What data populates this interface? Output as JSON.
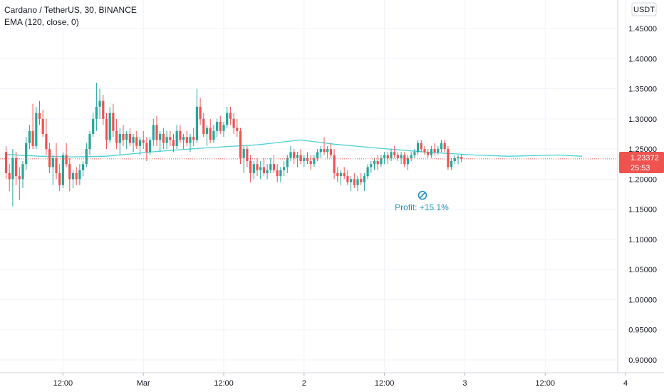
{
  "header": {
    "symbol_line": "Cardano / TetherUS, 30, BINANCE",
    "indicator_line": "EMA (120, close, 0)"
  },
  "axis": {
    "unit": "USDT"
  },
  "current_price": {
    "price": "1.23372",
    "countdown": "25:53"
  },
  "annotation": {
    "text": "Profit: +15.1%"
  },
  "colors": {
    "up": "#26a69a",
    "down": "#ef5350",
    "ema": "#4dd0d4",
    "grid": "#f0f3fa",
    "price_line": "#ef5350",
    "annotation": "#2196c4"
  },
  "chart_data": {
    "type": "candlestick",
    "symbol": "ADAUSDT",
    "interval": "30",
    "exchange": "BINANCE",
    "y_ticks": [
      "1.45000",
      "1.40000",
      "1.35000",
      "1.30000",
      "1.25000",
      "1.20000",
      "1.15000",
      "1.10000",
      "1.05000",
      "1.00000",
      "0.95000",
      "0.90000"
    ],
    "ylim": [
      0.87,
      1.49
    ],
    "x_ticks": [
      {
        "label": "12:00",
        "index": 17
      },
      {
        "label": "Mar",
        "index": 41
      },
      {
        "label": "12:00",
        "index": 65
      },
      {
        "label": "2",
        "index": 89
      },
      {
        "label": "12:00",
        "index": 113
      },
      {
        "label": "3",
        "index": 137
      },
      {
        "label": "12:00",
        "index": 161
      },
      {
        "label": "4",
        "index": 185
      }
    ],
    "last_price": 1.23372,
    "ema_name": "EMA (120, close, 0)",
    "ema": [
      [
        0,
        1.241
      ],
      [
        10,
        1.238
      ],
      [
        20,
        1.237
      ],
      [
        30,
        1.238
      ],
      [
        45,
        1.246
      ],
      [
        60,
        1.252
      ],
      [
        75,
        1.257
      ],
      [
        88,
        1.265
      ],
      [
        98,
        1.258
      ],
      [
        110,
        1.252
      ],
      [
        125,
        1.245
      ],
      [
        140,
        1.24
      ],
      [
        150,
        1.238
      ],
      [
        165,
        1.24
      ],
      [
        172,
        1.238
      ]
    ],
    "candles": [
      [
        1.245,
        1.255,
        1.2,
        1.21
      ],
      [
        1.21,
        1.225,
        1.18,
        1.2
      ],
      [
        1.2,
        1.25,
        1.155,
        1.235
      ],
      [
        1.235,
        1.245,
        1.19,
        1.205
      ],
      [
        1.205,
        1.22,
        1.165,
        1.2
      ],
      [
        1.2,
        1.23,
        1.185,
        1.225
      ],
      [
        1.225,
        1.27,
        1.215,
        1.26
      ],
      [
        1.26,
        1.29,
        1.25,
        1.28
      ],
      [
        1.28,
        1.325,
        1.25,
        1.255
      ],
      [
        1.255,
        1.32,
        1.25,
        1.31
      ],
      [
        1.31,
        1.33,
        1.29,
        1.3
      ],
      [
        1.3,
        1.315,
        1.27,
        1.275
      ],
      [
        1.275,
        1.3,
        1.24,
        1.25
      ],
      [
        1.25,
        1.26,
        1.21,
        1.22
      ],
      [
        1.22,
        1.24,
        1.19,
        1.235
      ],
      [
        1.235,
        1.26,
        1.2,
        1.21
      ],
      [
        1.21,
        1.225,
        1.18,
        1.19
      ],
      [
        1.19,
        1.245,
        1.185,
        1.24
      ],
      [
        1.24,
        1.26,
        1.22,
        1.225
      ],
      [
        1.225,
        1.235,
        1.18,
        1.2
      ],
      [
        1.2,
        1.215,
        1.185,
        1.21
      ],
      [
        1.21,
        1.22,
        1.19,
        1.2
      ],
      [
        1.2,
        1.225,
        1.19,
        1.215
      ],
      [
        1.215,
        1.23,
        1.205,
        1.225
      ],
      [
        1.225,
        1.26,
        1.22,
        1.25
      ],
      [
        1.25,
        1.28,
        1.24,
        1.275
      ],
      [
        1.275,
        1.31,
        1.27,
        1.3
      ],
      [
        1.3,
        1.36,
        1.28,
        1.32
      ],
      [
        1.32,
        1.35,
        1.3,
        1.33
      ],
      [
        1.33,
        1.34,
        1.29,
        1.3
      ],
      [
        1.3,
        1.31,
        1.25,
        1.265
      ],
      [
        1.265,
        1.32,
        1.26,
        1.31
      ],
      [
        1.31,
        1.325,
        1.27,
        1.28
      ],
      [
        1.28,
        1.3,
        1.25,
        1.26
      ],
      [
        1.26,
        1.285,
        1.24,
        1.275
      ],
      [
        1.275,
        1.29,
        1.255,
        1.265
      ],
      [
        1.265,
        1.28,
        1.25,
        1.275
      ],
      [
        1.275,
        1.285,
        1.255,
        1.26
      ],
      [
        1.26,
        1.275,
        1.245,
        1.27
      ],
      [
        1.27,
        1.28,
        1.25,
        1.255
      ],
      [
        1.255,
        1.27,
        1.24,
        1.265
      ],
      [
        1.265,
        1.28,
        1.25,
        1.26
      ],
      [
        1.26,
        1.27,
        1.23,
        1.245
      ],
      [
        1.245,
        1.27,
        1.24,
        1.265
      ],
      [
        1.265,
        1.3,
        1.255,
        1.29
      ],
      [
        1.29,
        1.305,
        1.255,
        1.265
      ],
      [
        1.265,
        1.28,
        1.245,
        1.275
      ],
      [
        1.275,
        1.285,
        1.25,
        1.26
      ],
      [
        1.26,
        1.28,
        1.25,
        1.27
      ],
      [
        1.27,
        1.28,
        1.255,
        1.265
      ],
      [
        1.265,
        1.275,
        1.245,
        1.255
      ],
      [
        1.255,
        1.29,
        1.25,
        1.28
      ],
      [
        1.28,
        1.29,
        1.26,
        1.265
      ],
      [
        1.265,
        1.275,
        1.25,
        1.27
      ],
      [
        1.27,
        1.28,
        1.255,
        1.26
      ],
      [
        1.26,
        1.275,
        1.245,
        1.27
      ],
      [
        1.27,
        1.285,
        1.255,
        1.265
      ],
      [
        1.265,
        1.35,
        1.26,
        1.32
      ],
      [
        1.32,
        1.335,
        1.29,
        1.3
      ],
      [
        1.3,
        1.31,
        1.27,
        1.275
      ],
      [
        1.275,
        1.29,
        1.255,
        1.285
      ],
      [
        1.285,
        1.3,
        1.26,
        1.265
      ],
      [
        1.265,
        1.29,
        1.26,
        1.28
      ],
      [
        1.28,
        1.3,
        1.27,
        1.295
      ],
      [
        1.295,
        1.305,
        1.275,
        1.28
      ],
      [
        1.28,
        1.295,
        1.27,
        1.29
      ],
      [
        1.29,
        1.32,
        1.285,
        1.31
      ],
      [
        1.31,
        1.32,
        1.29,
        1.3
      ],
      [
        1.3,
        1.31,
        1.275,
        1.285
      ],
      [
        1.285,
        1.3,
        1.27,
        1.28
      ],
      [
        1.28,
        1.285,
        1.225,
        1.235
      ],
      [
        1.235,
        1.255,
        1.21,
        1.25
      ],
      [
        1.25,
        1.255,
        1.22,
        1.23
      ],
      [
        1.23,
        1.24,
        1.195,
        1.21
      ],
      [
        1.21,
        1.23,
        1.2,
        1.225
      ],
      [
        1.225,
        1.235,
        1.205,
        1.215
      ],
      [
        1.215,
        1.23,
        1.2,
        1.22
      ],
      [
        1.22,
        1.235,
        1.205,
        1.21
      ],
      [
        1.21,
        1.225,
        1.2,
        1.215
      ],
      [
        1.215,
        1.235,
        1.21,
        1.225
      ],
      [
        1.225,
        1.24,
        1.21,
        1.215
      ],
      [
        1.215,
        1.225,
        1.195,
        1.205
      ],
      [
        1.205,
        1.22,
        1.195,
        1.215
      ],
      [
        1.215,
        1.23,
        1.205,
        1.22
      ],
      [
        1.22,
        1.24,
        1.21,
        1.235
      ],
      [
        1.235,
        1.255,
        1.23,
        1.245
      ],
      [
        1.245,
        1.25,
        1.225,
        1.235
      ],
      [
        1.235,
        1.245,
        1.22,
        1.24
      ],
      [
        1.24,
        1.25,
        1.225,
        1.23
      ],
      [
        1.23,
        1.24,
        1.22,
        1.235
      ],
      [
        1.235,
        1.245,
        1.225,
        1.23
      ],
      [
        1.23,
        1.24,
        1.215,
        1.225
      ],
      [
        1.225,
        1.24,
        1.22,
        1.235
      ],
      [
        1.235,
        1.25,
        1.23,
        1.245
      ],
      [
        1.245,
        1.255,
        1.235,
        1.25
      ],
      [
        1.25,
        1.27,
        1.24,
        1.245
      ],
      [
        1.245,
        1.255,
        1.235,
        1.25
      ],
      [
        1.25,
        1.26,
        1.235,
        1.24
      ],
      [
        1.24,
        1.25,
        1.2,
        1.21
      ],
      [
        1.21,
        1.22,
        1.195,
        1.205
      ],
      [
        1.205,
        1.215,
        1.19,
        1.21
      ],
      [
        1.21,
        1.22,
        1.2,
        1.205
      ],
      [
        1.205,
        1.215,
        1.19,
        1.195
      ],
      [
        1.195,
        1.205,
        1.18,
        1.2
      ],
      [
        1.2,
        1.21,
        1.185,
        1.19
      ],
      [
        1.19,
        1.205,
        1.18,
        1.2
      ],
      [
        1.2,
        1.21,
        1.19,
        1.195
      ],
      [
        1.195,
        1.21,
        1.18,
        1.205
      ],
      [
        1.205,
        1.225,
        1.2,
        1.22
      ],
      [
        1.22,
        1.23,
        1.21,
        1.225
      ],
      [
        1.225,
        1.235,
        1.215,
        1.23
      ],
      [
        1.23,
        1.24,
        1.215,
        1.225
      ],
      [
        1.225,
        1.24,
        1.22,
        1.235
      ],
      [
        1.235,
        1.245,
        1.225,
        1.24
      ],
      [
        1.24,
        1.245,
        1.225,
        1.235
      ],
      [
        1.235,
        1.25,
        1.23,
        1.245
      ],
      [
        1.245,
        1.255,
        1.235,
        1.24
      ],
      [
        1.24,
        1.245,
        1.23,
        1.235
      ],
      [
        1.235,
        1.245,
        1.225,
        1.24
      ],
      [
        1.24,
        1.245,
        1.22,
        1.225
      ],
      [
        1.225,
        1.24,
        1.215,
        1.235
      ],
      [
        1.235,
        1.245,
        1.23,
        1.24
      ],
      [
        1.24,
        1.25,
        1.235,
        1.245
      ],
      [
        1.245,
        1.265,
        1.24,
        1.26
      ],
      [
        1.26,
        1.265,
        1.245,
        1.25
      ],
      [
        1.25,
        1.255,
        1.24,
        1.245
      ],
      [
        1.245,
        1.25,
        1.235,
        1.24
      ],
      [
        1.24,
        1.255,
        1.235,
        1.25
      ],
      [
        1.25,
        1.26,
        1.24,
        1.245
      ],
      [
        1.245,
        1.255,
        1.24,
        1.25
      ],
      [
        1.25,
        1.265,
        1.245,
        1.26
      ],
      [
        1.26,
        1.265,
        1.245,
        1.25
      ],
      [
        1.25,
        1.255,
        1.215,
        1.22
      ],
      [
        1.22,
        1.235,
        1.215,
        1.23
      ],
      [
        1.23,
        1.24,
        1.225,
        1.235
      ],
      [
        1.235,
        1.24,
        1.225,
        1.237
      ],
      [
        1.237,
        1.242,
        1.228,
        1.2337
      ]
    ]
  }
}
